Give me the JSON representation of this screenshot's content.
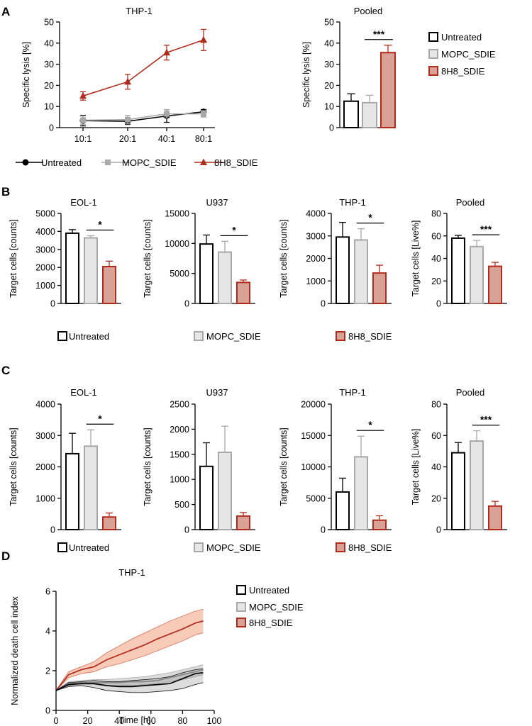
{
  "colors": {
    "untreated": "#000000",
    "mopc": "#a8a8a8",
    "mopc_fill": "#e6e6e6",
    "h8": "#b22a1c",
    "h8_fill": "#d9a297"
  },
  "panels": {
    "A": {
      "label": "A"
    },
    "B": {
      "label": "B"
    },
    "C": {
      "label": "C"
    },
    "D": {
      "label": "D"
    }
  },
  "legend": {
    "untreated": "Untreated",
    "mopc": "MOPC_SDIE",
    "h8": "8H8_SDIE"
  },
  "chart_data": [
    {
      "id": "A_line",
      "type": "line",
      "title": "THP-1",
      "xlabel": "",
      "ylabel": "Specific lysis [%]",
      "categories": [
        "10:1",
        "20:1",
        "40:1",
        "80:1"
      ],
      "ylim": [
        0,
        50
      ],
      "yticks": [
        "0",
        "10",
        "20",
        "30",
        "40",
        "50"
      ],
      "series": [
        {
          "name": "Untreated",
          "key": "untreated",
          "values": [
            3.3,
            3.0,
            5.5,
            7.5
          ],
          "err": [
            2.5,
            1.5,
            3.0,
            1.0
          ]
        },
        {
          "name": "MOPC_SDIE",
          "key": "mopc",
          "values": [
            3.5,
            3.8,
            6.5,
            6.5
          ],
          "err": [
            2.0,
            2.0,
            2.0,
            1.5
          ]
        },
        {
          "name": "8H8_SDIE",
          "key": "h8",
          "values": [
            15.0,
            21.7,
            35.5,
            41.5
          ],
          "err": [
            2.0,
            3.5,
            3.5,
            5.0
          ]
        }
      ]
    },
    {
      "id": "A_bar",
      "type": "bar",
      "title": "Pooled",
      "ylabel": "Specific lysis [%]",
      "categories": [
        "Untreated",
        "MOPC_SDIE",
        "8H8_SDIE"
      ],
      "values": [
        12.5,
        11.8,
        35.5
      ],
      "err": [
        3.5,
        3.5,
        3.5
      ],
      "ylim": [
        0,
        50
      ],
      "yticks": [
        "0",
        "10",
        "20",
        "30",
        "40",
        "50"
      ],
      "sig": "***"
    },
    {
      "id": "B1",
      "type": "bar",
      "title": "EOL-1",
      "ylabel": "Target cells [counts]",
      "categories": [
        "Untreated",
        "MOPC_SDIE",
        "8H8_SDIE"
      ],
      "values": [
        3900,
        3640,
        2050
      ],
      "err": [
        200,
        120,
        300
      ],
      "ylim": [
        0,
        5000
      ],
      "yticks": [
        "0",
        "1000",
        "2000",
        "3000",
        "4000",
        "5000"
      ],
      "sig": "*"
    },
    {
      "id": "B2",
      "type": "bar",
      "title": "U937",
      "ylabel": "Target cells [counts]",
      "categories": [
        "Untreated",
        "MOPC_SDIE",
        "8H8_SDIE"
      ],
      "values": [
        9900,
        8550,
        3500
      ],
      "err": [
        1500,
        1800,
        400
      ],
      "ylim": [
        0,
        15000
      ],
      "yticks": [
        "0",
        "5000",
        "10000",
        "15000"
      ],
      "sig": "*"
    },
    {
      "id": "B3",
      "type": "bar",
      "title": "THP-1",
      "ylabel": "Target cells [counts]",
      "categories": [
        "Untreated",
        "MOPC_SDIE",
        "8H8_SDIE"
      ],
      "values": [
        2950,
        2820,
        1350
      ],
      "err": [
        650,
        500,
        350
      ],
      "ylim": [
        0,
        4000
      ],
      "yticks": [
        "0",
        "1000",
        "2000",
        "3000",
        "4000"
      ],
      "sig": "*"
    },
    {
      "id": "B4",
      "type": "bar",
      "title": "Pooled",
      "ylabel": "Target cells [Live%]",
      "categories": [
        "Untreated",
        "MOPC_SDIE",
        "8H8_SDIE"
      ],
      "values": [
        58,
        50.5,
        33
      ],
      "err": [
        2.5,
        5.5,
        3.5
      ],
      "ylim": [
        0,
        80
      ],
      "yticks": [
        "0",
        "20",
        "40",
        "60",
        "80"
      ],
      "sig": "***"
    },
    {
      "id": "C1",
      "type": "bar",
      "title": "EOL-1",
      "ylabel": "Target cells [counts]",
      "categories": [
        "Untreated",
        "MOPC_SDIE",
        "8H8_SDIE"
      ],
      "values": [
        2420,
        2660,
        400
      ],
      "err": [
        650,
        520,
        130
      ],
      "ylim": [
        0,
        4000
      ],
      "yticks": [
        "0",
        "1000",
        "2000",
        "3000",
        "4000"
      ],
      "sig": "*"
    },
    {
      "id": "C2",
      "type": "bar",
      "title": "U937",
      "ylabel": "Target cells [counts]",
      "categories": [
        "Untreated",
        "MOPC_SDIE",
        "8H8_SDIE"
      ],
      "values": [
        1260,
        1540,
        270
      ],
      "err": [
        470,
        520,
        70
      ],
      "ylim": [
        0,
        2500
      ],
      "yticks": [
        "0",
        "500",
        "1000",
        "1500",
        "2000",
        "2500"
      ],
      "sig": ""
    },
    {
      "id": "C3",
      "type": "bar",
      "title": "THP-1",
      "ylabel": "Target cells [counts]",
      "categories": [
        "Untreated",
        "MOPC_SDIE",
        "8H8_SDIE"
      ],
      "values": [
        6000,
        11600,
        1500
      ],
      "err": [
        2200,
        3300,
        700
      ],
      "ylim": [
        0,
        20000
      ],
      "yticks": [
        "0",
        "5000",
        "10000",
        "15000",
        "20000"
      ],
      "sig": "*"
    },
    {
      "id": "C4",
      "type": "bar",
      "title": "Pooled",
      "ylabel": "Target cells [Live%]",
      "categories": [
        "Untreated",
        "MOPC_SDIE",
        "8H8_SDIE"
      ],
      "values": [
        49,
        56.5,
        15
      ],
      "err": [
        6.5,
        6.5,
        3
      ],
      "ylim": [
        0,
        80
      ],
      "yticks": [
        "0",
        "20",
        "40",
        "60",
        "80"
      ],
      "sig": "***"
    },
    {
      "id": "D",
      "type": "area",
      "title": "THP-1",
      "xlabel": "Time  [h]",
      "ylabel": "Normalized death cell index",
      "xlim": [
        0,
        100
      ],
      "ylim": [
        0,
        6
      ],
      "xticks": [
        "0",
        "20",
        "40",
        "60",
        "80",
        "100"
      ],
      "yticks": [
        "0",
        "2",
        "4",
        "6"
      ],
      "x": [
        0,
        8,
        16,
        24,
        32,
        40,
        48,
        56,
        64,
        72,
        80,
        88,
        93
      ],
      "series": [
        {
          "name": "Untreated",
          "key": "untreated",
          "mean": [
            1.0,
            1.3,
            1.35,
            1.35,
            1.25,
            1.2,
            1.2,
            1.25,
            1.3,
            1.35,
            1.6,
            1.85,
            1.9
          ],
          "lower": [
            1.0,
            1.2,
            1.25,
            1.15,
            1.0,
            0.95,
            0.9,
            0.9,
            0.95,
            1.0,
            1.1,
            1.3,
            1.4
          ],
          "upper": [
            1.0,
            1.4,
            1.45,
            1.5,
            1.45,
            1.45,
            1.5,
            1.55,
            1.6,
            1.7,
            1.9,
            2.05,
            2.1
          ]
        },
        {
          "name": "MOPC_SDIE",
          "key": "mopc",
          "mean": [
            1.0,
            1.35,
            1.4,
            1.4,
            1.4,
            1.4,
            1.45,
            1.45,
            1.5,
            1.65,
            1.8,
            1.95,
            2.05
          ],
          "lower": [
            1.0,
            1.25,
            1.3,
            1.3,
            1.25,
            1.25,
            1.25,
            1.3,
            1.35,
            1.45,
            1.55,
            1.7,
            1.8
          ],
          "upper": [
            1.0,
            1.45,
            1.5,
            1.55,
            1.55,
            1.6,
            1.65,
            1.7,
            1.8,
            1.9,
            2.05,
            2.2,
            2.3
          ]
        },
        {
          "name": "8H8_SDIE",
          "key": "h8",
          "mean": [
            1.0,
            1.8,
            2.05,
            2.2,
            2.55,
            2.8,
            3.05,
            3.3,
            3.6,
            3.85,
            4.1,
            4.4,
            4.5
          ],
          "lower": [
            1.0,
            1.65,
            1.85,
            1.95,
            2.2,
            2.35,
            2.55,
            2.75,
            3.0,
            3.25,
            3.5,
            3.8,
            3.9
          ],
          "upper": [
            1.0,
            1.95,
            2.2,
            2.45,
            2.9,
            3.25,
            3.6,
            3.9,
            4.2,
            4.5,
            4.75,
            5.0,
            5.1
          ]
        }
      ]
    }
  ]
}
